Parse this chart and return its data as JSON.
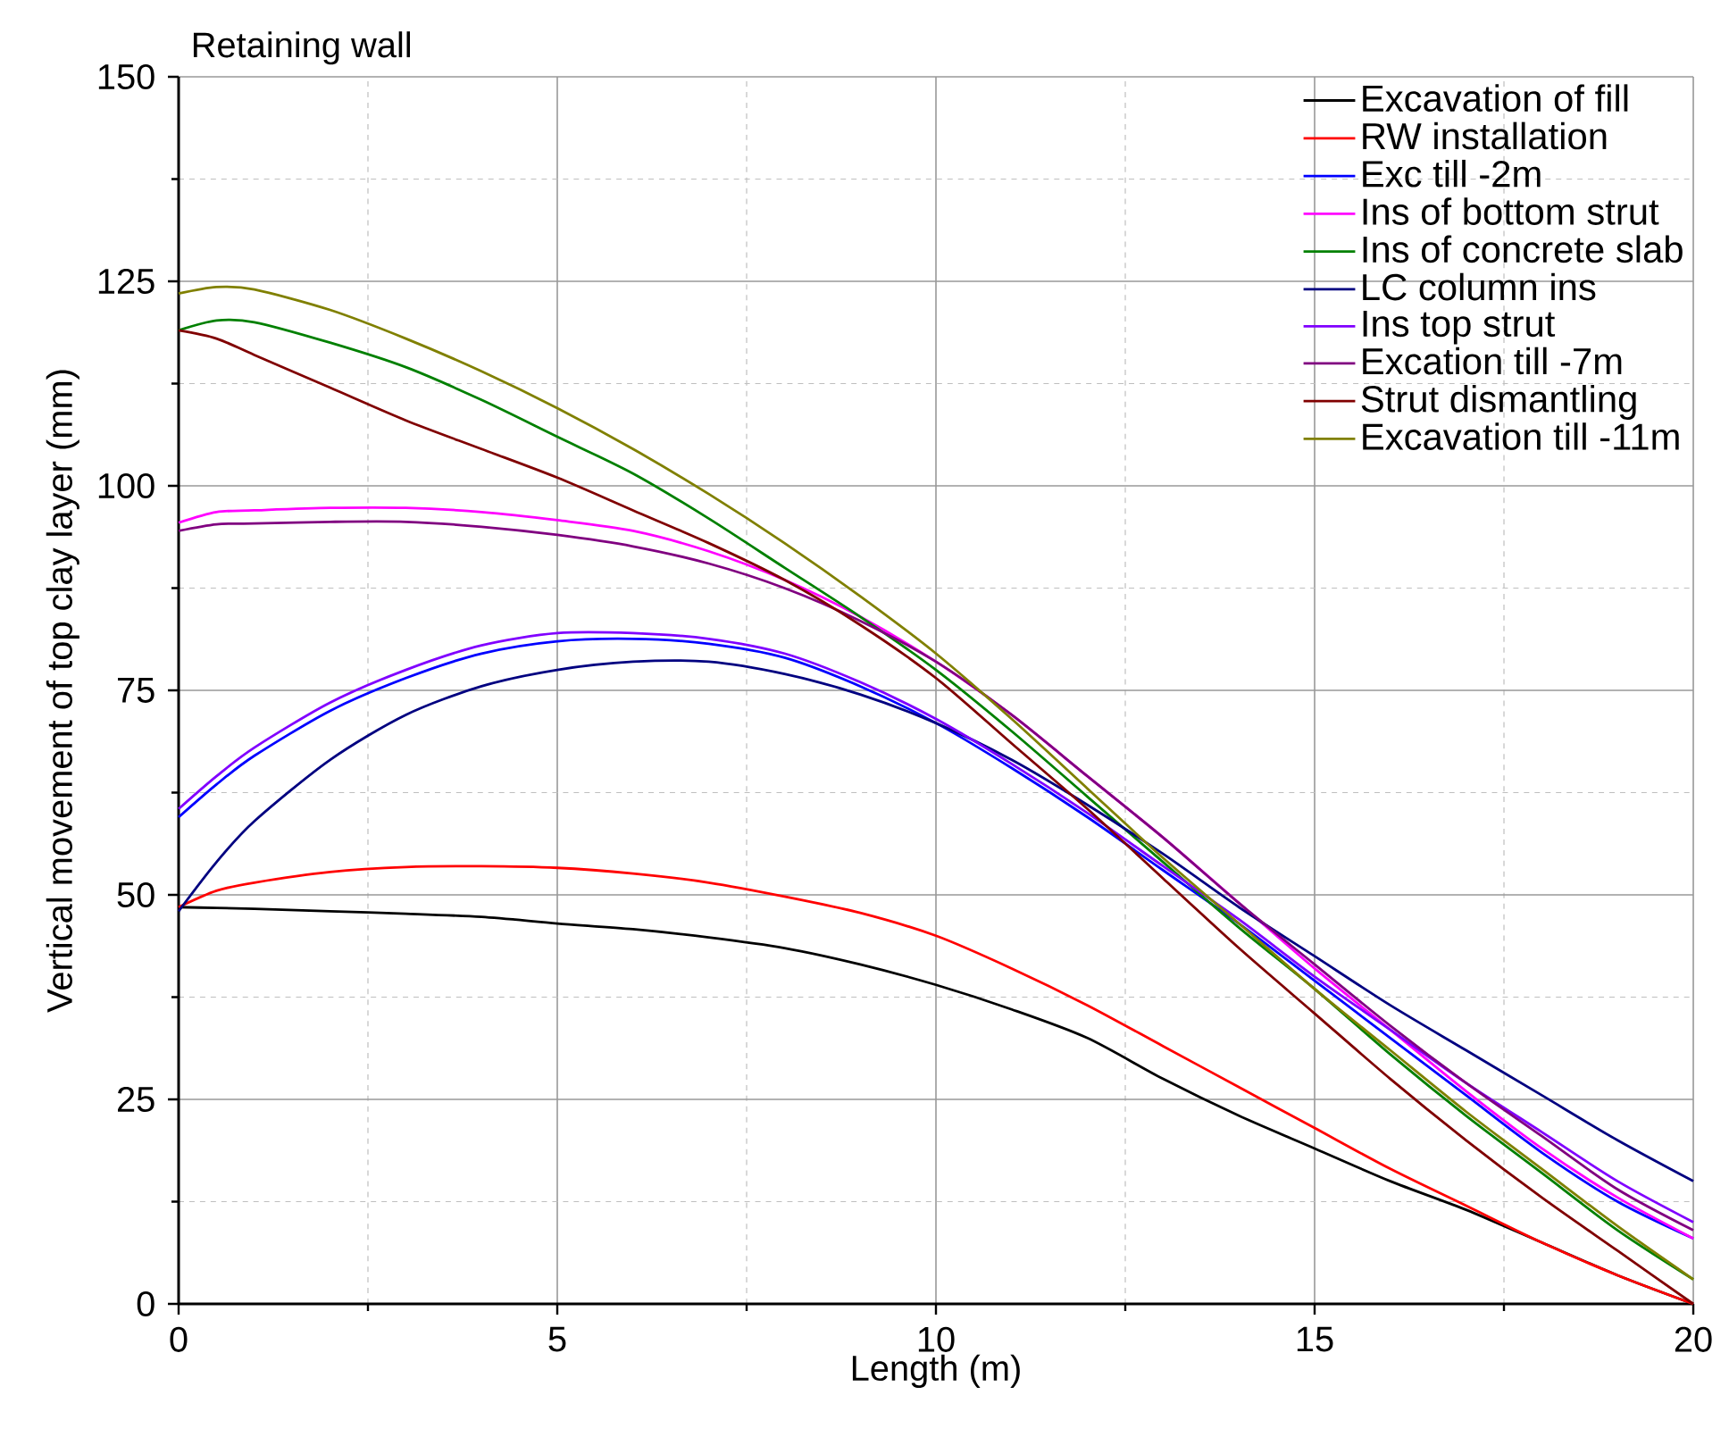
{
  "chart_data": {
    "type": "line",
    "title": "Retaining wall",
    "xlabel": "Length (m)",
    "ylabel": "Vertical movement of top clay layer (mm)",
    "x": [
      0,
      0.5,
      1,
      2,
      3,
      4,
      5,
      6,
      7,
      8,
      9,
      10,
      11,
      12,
      13,
      14,
      15,
      16,
      17,
      18,
      19,
      20
    ],
    "series": [
      {
        "name": "Excavation of fill",
        "color": "#000000",
        "values": [
          48.5,
          48.4,
          48.3,
          48,
          47.7,
          47.3,
          46.5,
          45.8,
          44.8,
          43.5,
          41.5,
          39,
          36,
          32.5,
          27.5,
          23,
          19,
          15,
          11.5,
          7.5,
          3.5,
          0
        ]
      },
      {
        "name": "RW installation",
        "color": "#ff0000",
        "values": [
          48.5,
          50.5,
          51.5,
          52.8,
          53.4,
          53.5,
          53.3,
          52.6,
          51.5,
          49.8,
          47.8,
          45,
          41,
          36.5,
          31.5,
          26.5,
          21.5,
          16.5,
          12,
          7.5,
          3.5,
          0
        ]
      },
      {
        "name": "Exc till -2m",
        "color": "#0000ff",
        "values": [
          59.5,
          63.5,
          67,
          72.5,
          76.5,
          79.5,
          81,
          81.3,
          80.7,
          79,
          75.5,
          71,
          65.5,
          59.5,
          53,
          46.5,
          39.5,
          32.5,
          25.5,
          18.5,
          12.5,
          8
        ]
      },
      {
        "name": "Ins of bottom strut",
        "color": "#ff00ff",
        "values": [
          95.5,
          96.8,
          97,
          97.3,
          97.3,
          96.8,
          95.8,
          94.5,
          92,
          88.5,
          84,
          78.5,
          72,
          64.5,
          57,
          49,
          41,
          33.5,
          26,
          19,
          13,
          8
        ]
      },
      {
        "name": "Ins of concrete slab",
        "color": "#008000",
        "values": [
          119,
          120.2,
          120,
          117.5,
          114.5,
          110.5,
          106,
          101.5,
          96,
          90,
          84,
          77.5,
          70,
          62,
          54,
          46,
          38.5,
          30.5,
          23,
          16,
          9,
          3
        ]
      },
      {
        "name": "LC column ins",
        "color": "#000080",
        "values": [
          48,
          54,
          59,
          66.5,
          72,
          75.5,
          77.5,
          78.5,
          78.5,
          77,
          74.5,
          71,
          66.5,
          61,
          55,
          48.5,
          42.5,
          36.5,
          31,
          25.5,
          20,
          15
        ]
      },
      {
        "name": "Ins top strut",
        "color": "#8000ff",
        "values": [
          60.5,
          64.5,
          68,
          73.5,
          77.5,
          80.5,
          82,
          82,
          81.3,
          79.5,
          76,
          71.5,
          66,
          60,
          53.5,
          47,
          40,
          33.5,
          27,
          21,
          15,
          10
        ]
      },
      {
        "name": "Excation till -7m",
        "color": "#800080",
        "values": [
          94.5,
          95.3,
          95.4,
          95.6,
          95.6,
          95,
          94,
          92.6,
          90.5,
          87.5,
          83.5,
          78.5,
          72,
          64.5,
          57,
          49,
          41.5,
          34,
          27,
          20.5,
          14,
          9
        ]
      },
      {
        "name": "Strut dismantling",
        "color": "#800000",
        "values": [
          119,
          118,
          116,
          112,
          108,
          104.5,
          101,
          97,
          93,
          88.5,
          83,
          76.5,
          68.5,
          60.5,
          52,
          43.5,
          35.5,
          27.5,
          20,
          13,
          6.5,
          0
        ]
      },
      {
        "name": "Excavation till -11m",
        "color": "#808000",
        "values": [
          123.5,
          124.3,
          124,
          121.5,
          118,
          114,
          109.5,
          104.5,
          99,
          93,
          86.5,
          79.5,
          71.5,
          63,
          54.5,
          46.5,
          38.5,
          31,
          23.5,
          16.5,
          9.5,
          3
        ]
      }
    ],
    "xlim": [
      0,
      20
    ],
    "xticks": [
      0,
      5,
      10,
      15,
      20
    ],
    "ylim": [
      0,
      150
    ],
    "yticks": [
      0,
      25,
      50,
      75,
      100,
      125,
      150
    ],
    "grid": true,
    "legend": "top right",
    "marker": "none",
    "line_style": "solid"
  }
}
